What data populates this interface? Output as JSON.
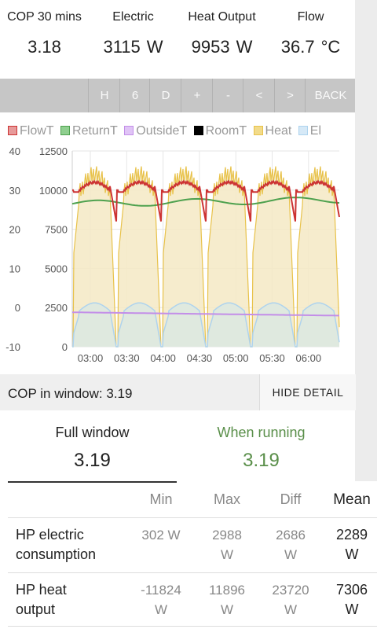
{
  "top_stats": [
    {
      "label": "COP 30 mins",
      "value": "3.18",
      "unit": ""
    },
    {
      "label": "Electric",
      "value": "3115",
      "unit": "W"
    },
    {
      "label": "Heat Output",
      "value": "9953",
      "unit": "W"
    },
    {
      "label": "Flow",
      "value": "36.7",
      "unit": "°C"
    }
  ],
  "toolbar": {
    "buttons": [
      "H",
      "6",
      "D",
      "+",
      "-",
      "<",
      ">",
      "BACK"
    ]
  },
  "legend": [
    {
      "name": "FlowT",
      "color": "#cc3333"
    },
    {
      "name": "ReturnT",
      "color": "#4ea14e"
    },
    {
      "name": "OutsideT",
      "color": "#c38ee8"
    },
    {
      "name": "RoomT",
      "color": "#000000"
    },
    {
      "name": "Heat",
      "color": "#e8c24a"
    },
    {
      "name": "El",
      "color": "#aed3ee"
    }
  ],
  "chart_data": {
    "type": "line",
    "x_ticks": [
      "03:00",
      "03:30",
      "04:00",
      "04:30",
      "05:00",
      "05:30",
      "06:00"
    ],
    "y_left_ticks": [
      "40",
      "30",
      "20",
      "10",
      "0",
      "-10"
    ],
    "y_right_ticks": [
      "12500",
      "10000",
      "7500",
      "5000",
      "2500",
      "0"
    ],
    "y_left_range": [
      -10,
      40
    ],
    "y_right_range": [
      0,
      12500
    ],
    "grid": true,
    "legend_position": "top",
    "series": [
      {
        "name": "FlowT",
        "axis": "left",
        "description": "cycles ~30 to 32 °C with drops to ~20 °C"
      },
      {
        "name": "ReturnT",
        "axis": "left",
        "values_range": [
          26,
          28
        ]
      },
      {
        "name": "OutsideT",
        "axis": "left",
        "values_range": [
          -2,
          -1
        ]
      },
      {
        "name": "Heat",
        "axis": "right",
        "description": "cycles 0 to ~11000 W"
      },
      {
        "name": "El",
        "axis": "right",
        "description": "cycles 0 to ~3000 W"
      }
    ]
  },
  "cop_bar": {
    "label": "COP in window:",
    "value": "3.19",
    "button": "HIDE DETAIL"
  },
  "windows": [
    {
      "title": "Full window",
      "value": "3.19",
      "color": "#222222"
    },
    {
      "title": "When running",
      "value": "3.19",
      "color": "#5a8f4a"
    }
  ],
  "table": {
    "headers": [
      "Min",
      "Max",
      "Diff",
      "Mean"
    ],
    "rows": [
      {
        "label": [
          "HP electric",
          "consumption"
        ],
        "min": [
          "302 W"
        ],
        "max": [
          "2988",
          "W"
        ],
        "diff": [
          "2686",
          "W"
        ],
        "mean": [
          "2289",
          "W"
        ]
      },
      {
        "label": [
          "HP heat",
          "output"
        ],
        "min": [
          "-11824",
          "W"
        ],
        "max": [
          "11896",
          "W"
        ],
        "diff": [
          "23720",
          "W"
        ],
        "mean": [
          "7306",
          "W"
        ]
      }
    ]
  }
}
